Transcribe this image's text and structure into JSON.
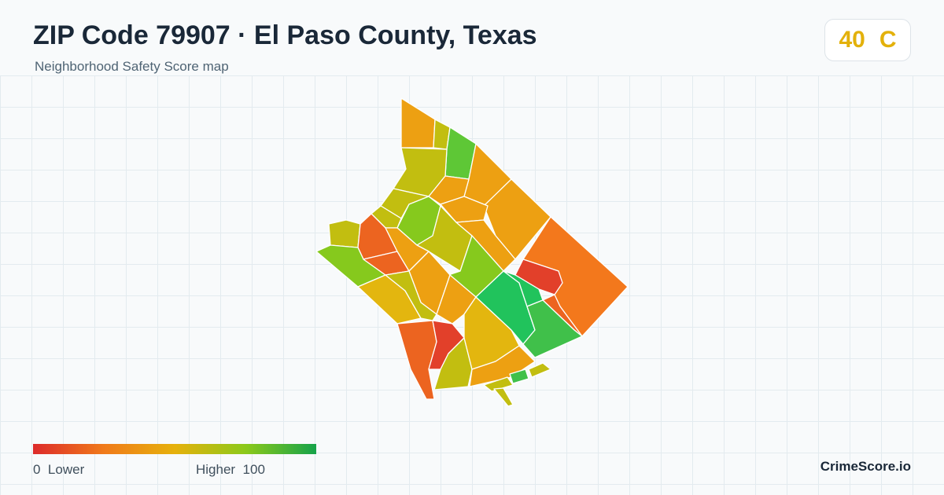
{
  "header": {
    "title": "ZIP Code 79907 · El Paso County, Texas",
    "subtitle": "Neighborhood Safety Score map"
  },
  "score": {
    "value": "40",
    "grade": "C",
    "color": "#e3b10b"
  },
  "legend": {
    "low_value": "0",
    "low_label": "Lower",
    "high_label": "Higher",
    "high_value": "100",
    "colors": [
      "#dd2b2b",
      "#f07a1a",
      "#e6b10c",
      "#8cc91a",
      "#16a34a"
    ]
  },
  "brand": "CrimeScore.io",
  "map": {
    "neighborhood_colors": {
      "red": "#e2402a",
      "red_orange": "#ec6420",
      "orange": "#f3781c",
      "amber": "#eda012",
      "yellow": "#e3b60f",
      "olive": "#c2be10",
      "lime": "#86c91d",
      "light_green": "#5ec736",
      "green": "#40c04a",
      "teal_green": "#21c35c"
    }
  }
}
